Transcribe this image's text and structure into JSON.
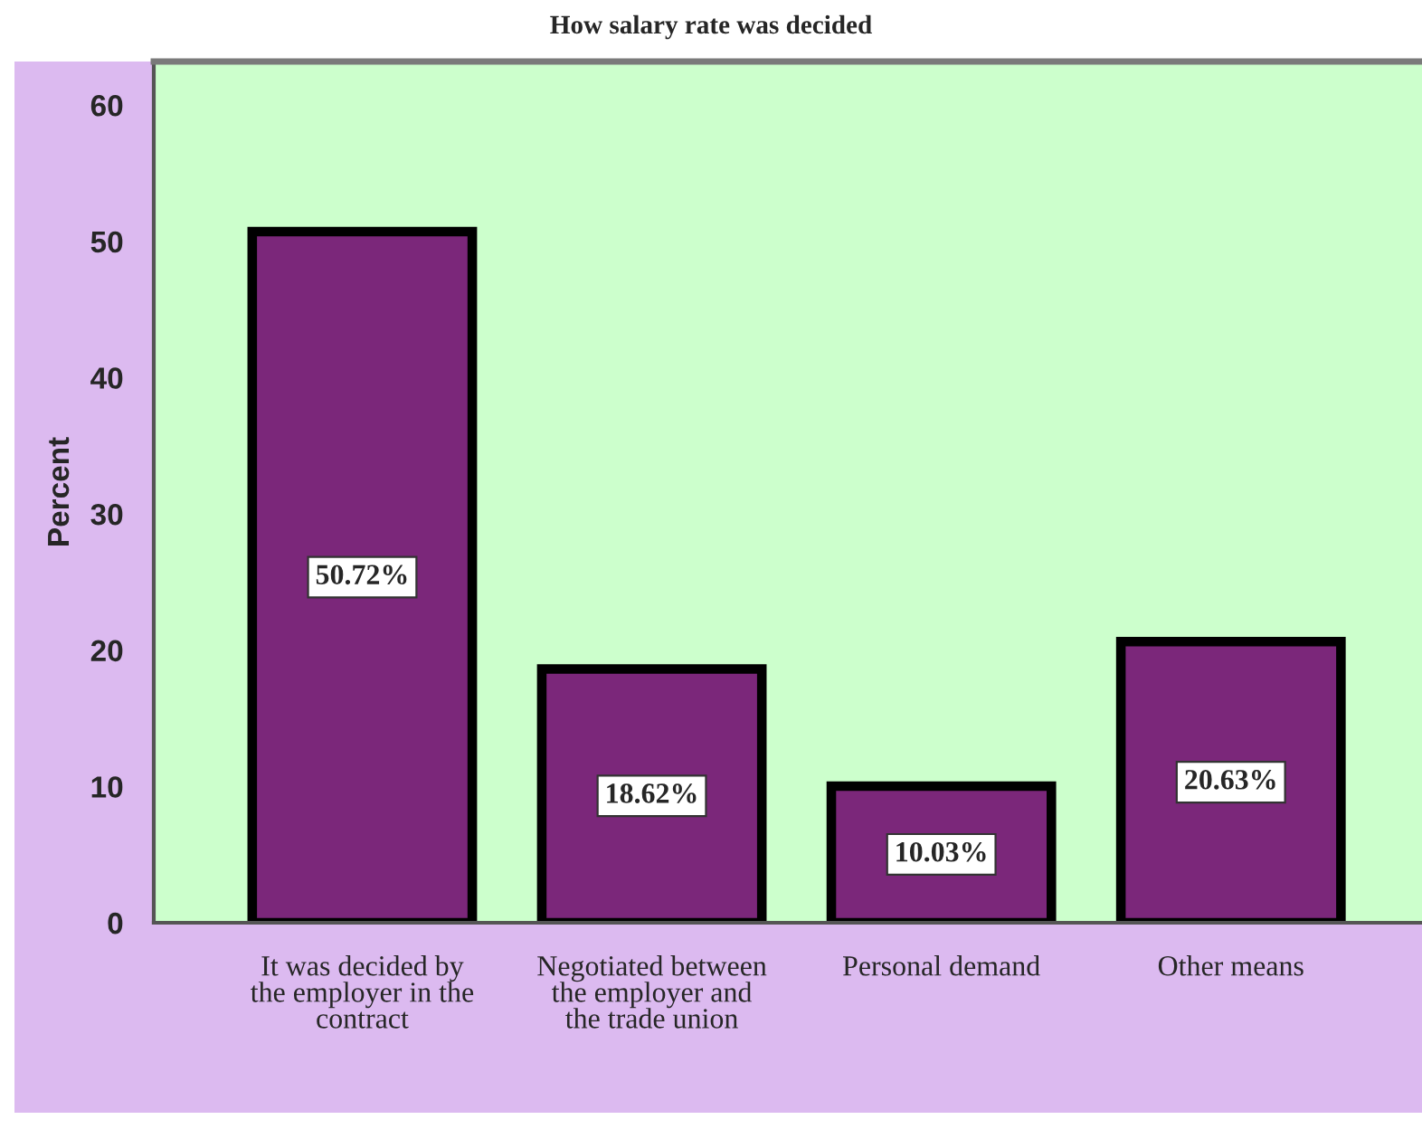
{
  "chart_data": {
    "type": "bar",
    "title": "How salary rate was decided",
    "ylabel": "Percent",
    "categories": [
      "It was decided by\nthe employer in the\ncontract",
      "Negotiated between\nthe employer and\nthe trade union",
      "Personal demand",
      "Other means"
    ],
    "values": [
      50.72,
      18.62,
      10.03,
      20.63
    ],
    "value_labels": [
      "50.72%",
      "18.62%",
      "10.03%",
      "20.63%"
    ],
    "color": "#7b277a",
    "ylim": [
      0,
      63.2
    ],
    "yticks": [
      0,
      10,
      20,
      30,
      40,
      50,
      60
    ]
  }
}
